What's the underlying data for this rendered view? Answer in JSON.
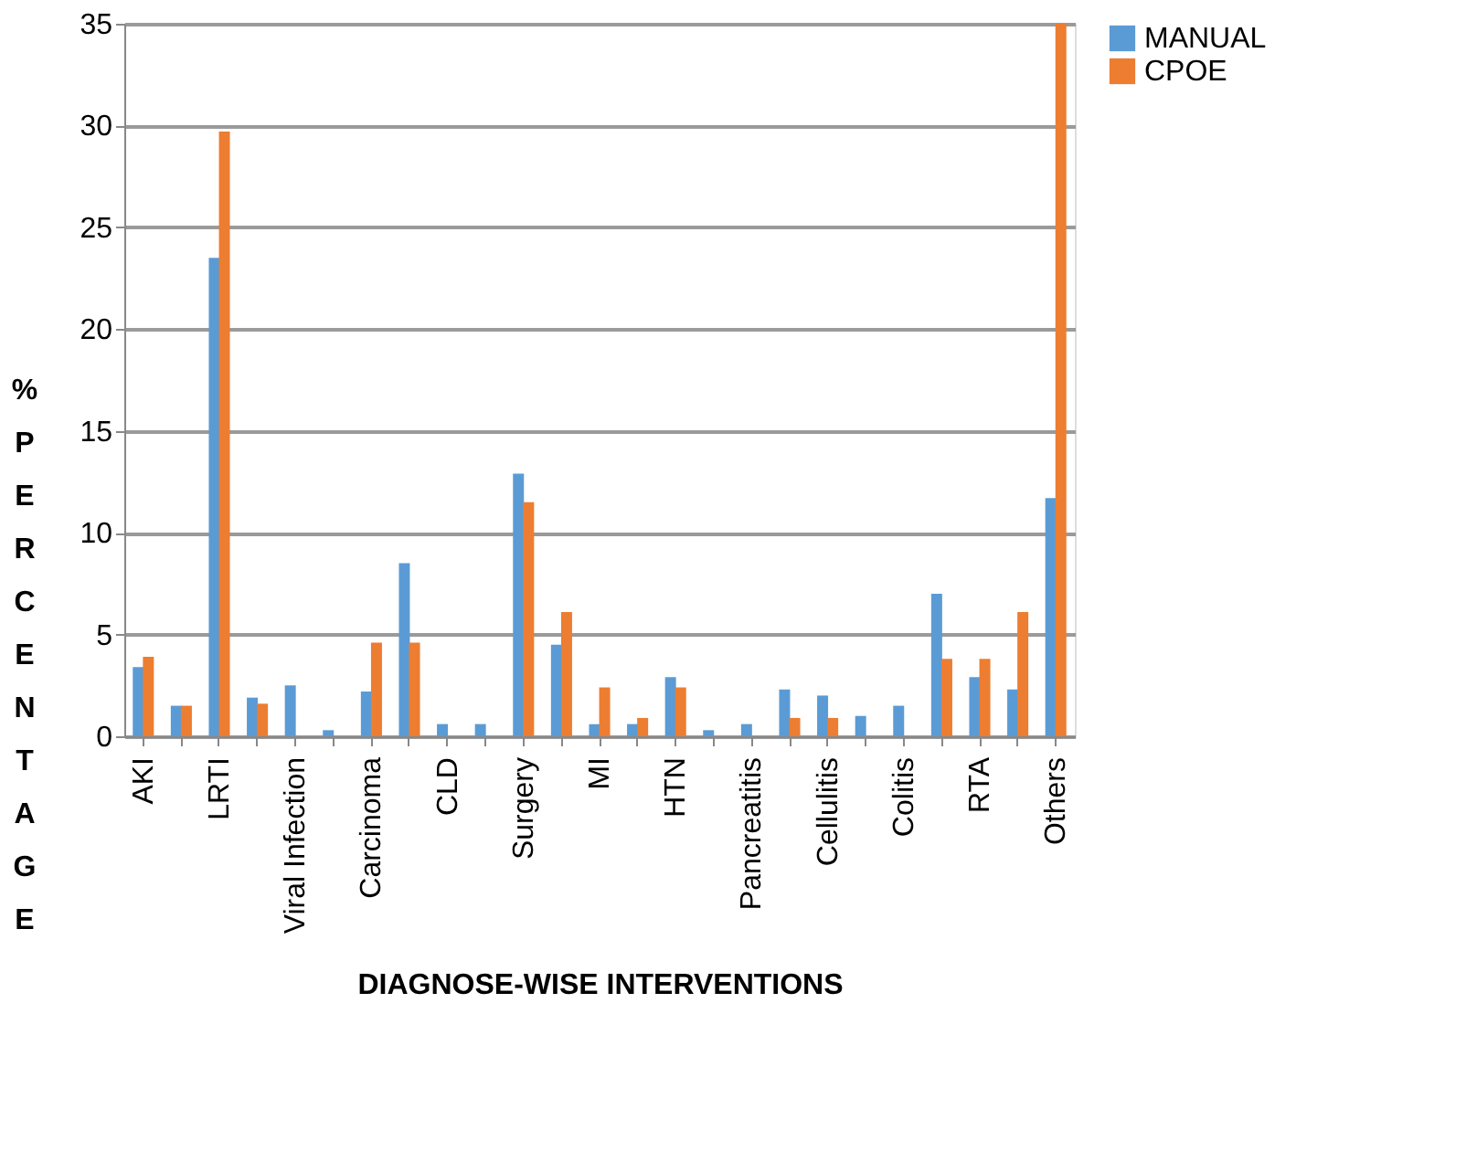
{
  "chart_data": {
    "type": "bar",
    "xlabel": "DIAGNOSE-WISE INTERVENTIONS",
    "ylabel": "%PERCENTAGE",
    "categories": [
      "AKI",
      null,
      "LRTI",
      null,
      "Viral Infection",
      null,
      "Carcinoma",
      null,
      "CLD",
      null,
      "Surgery",
      null,
      "MI",
      null,
      "HTN",
      null,
      "Pancreatitis",
      null,
      "Cellulitis",
      null,
      "Colitis",
      null,
      "RTA",
      null,
      "Others"
    ],
    "series": [
      {
        "name": "MANUAL",
        "color": "#5b9bd5",
        "values": [
          3.4,
          1.5,
          23.5,
          1.9,
          2.5,
          0.3,
          2.2,
          8.5,
          0.6,
          0.6,
          12.9,
          4.5,
          0.6,
          0.6,
          2.9,
          0.3,
          0.6,
          2.3,
          2.0,
          1.0,
          1.5,
          7.0,
          2.9,
          2.3,
          11.7
        ]
      },
      {
        "name": "CPOE",
        "color": "#ed7d31",
        "values": [
          3.9,
          1.5,
          29.7,
          1.6,
          0,
          0,
          4.6,
          4.6,
          0,
          0,
          11.5,
          6.1,
          2.4,
          0.9,
          2.4,
          0,
          0,
          0.9,
          0.9,
          0,
          0,
          3.8,
          3.8,
          6.1,
          35
        ]
      }
    ],
    "ylim": [
      0,
      35
    ],
    "yticks": [
      0,
      5,
      10,
      15,
      20,
      25,
      30,
      35
    ],
    "grid": "y",
    "legend": "right"
  }
}
